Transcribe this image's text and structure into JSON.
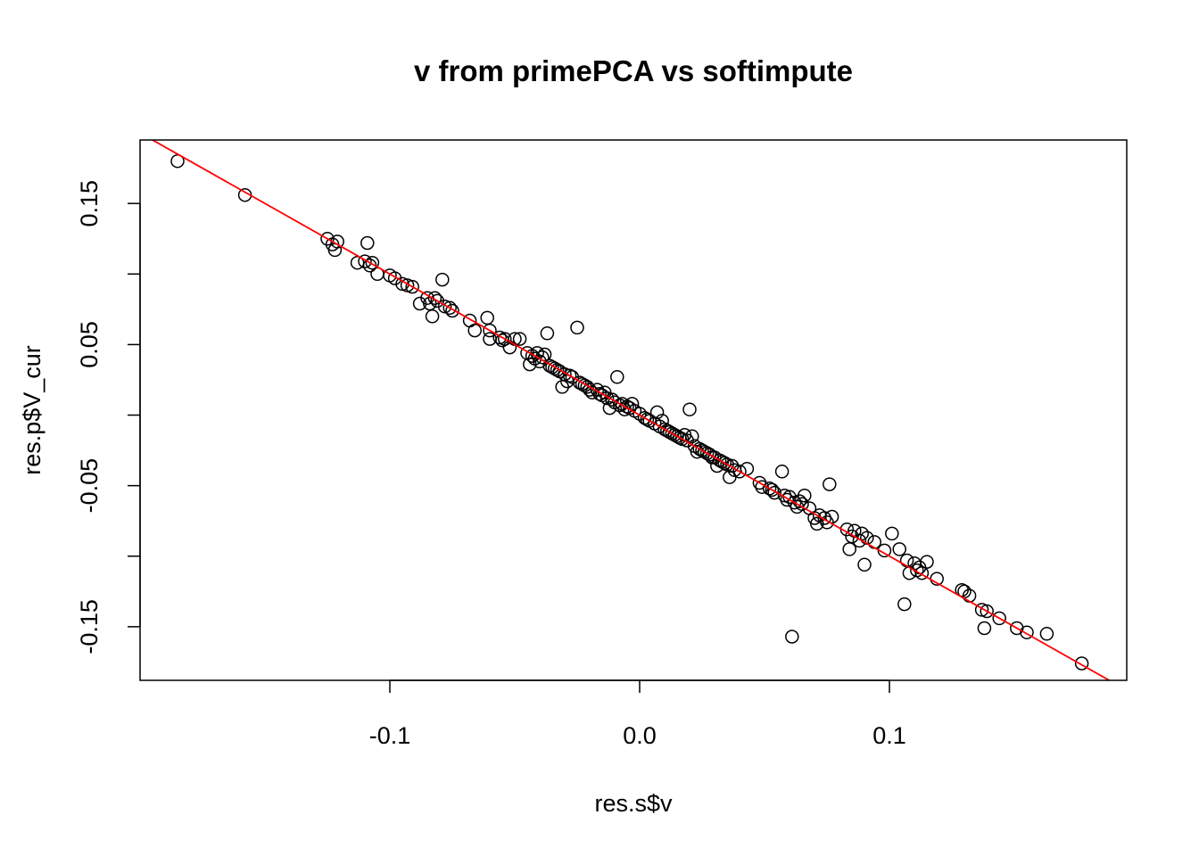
{
  "chart_data": {
    "type": "scatter",
    "title": "v from primePCA vs softimpute",
    "xlabel": "res.s$v",
    "ylabel": "res.p$V_cur",
    "xlim": [
      -0.2,
      0.195
    ],
    "ylim": [
      -0.188,
      0.195
    ],
    "x_ticks": [
      {
        "value": -0.1,
        "label": "-0.1"
      },
      {
        "value": 0.0,
        "label": "0.0"
      },
      {
        "value": 0.1,
        "label": "0.1"
      }
    ],
    "y_ticks": [
      {
        "value": 0.15,
        "label": "0.15"
      },
      {
        "value": 0.1,
        "label": ""
      },
      {
        "value": 0.05,
        "label": "0.05"
      },
      {
        "value": 0.0,
        "label": ""
      },
      {
        "value": -0.05,
        "label": "-0.05"
      },
      {
        "value": -0.1,
        "label": ""
      },
      {
        "value": -0.15,
        "label": "-0.15"
      }
    ],
    "reference_line": {
      "intercept": 0,
      "slope": -1,
      "color": "#ff0000"
    },
    "grid": false,
    "legend": "none",
    "point_style": "open-circle",
    "points": [
      [
        -0.185,
        0.18
      ],
      [
        -0.158,
        0.156
      ],
      [
        -0.125,
        0.125
      ],
      [
        -0.123,
        0.121
      ],
      [
        -0.122,
        0.117
      ],
      [
        -0.121,
        0.123
      ],
      [
        -0.109,
        0.122
      ],
      [
        -0.113,
        0.108
      ],
      [
        -0.11,
        0.109
      ],
      [
        -0.108,
        0.106
      ],
      [
        -0.107,
        0.108
      ],
      [
        -0.105,
        0.1
      ],
      [
        -0.1,
        0.099
      ],
      [
        -0.098,
        0.097
      ],
      [
        -0.095,
        0.093
      ],
      [
        -0.093,
        0.092
      ],
      [
        -0.091,
        0.091
      ],
      [
        -0.088,
        0.079
      ],
      [
        -0.085,
        0.083
      ],
      [
        -0.084,
        0.079
      ],
      [
        -0.083,
        0.07
      ],
      [
        -0.082,
        0.083
      ],
      [
        -0.081,
        0.081
      ],
      [
        -0.079,
        0.096
      ],
      [
        -0.078,
        0.077
      ],
      [
        -0.076,
        0.076
      ],
      [
        -0.075,
        0.074
      ],
      [
        -0.068,
        0.067
      ],
      [
        -0.066,
        0.06
      ],
      [
        -0.061,
        0.069
      ],
      [
        -0.06,
        0.06
      ],
      [
        -0.06,
        0.054
      ],
      [
        -0.056,
        0.055
      ],
      [
        -0.055,
        0.053
      ],
      [
        -0.054,
        0.054
      ],
      [
        -0.052,
        0.048
      ],
      [
        -0.05,
        0.054
      ],
      [
        -0.048,
        0.054
      ],
      [
        -0.045,
        0.044
      ],
      [
        -0.044,
        0.036
      ],
      [
        -0.043,
        0.042
      ],
      [
        -0.042,
        0.04
      ],
      [
        -0.041,
        0.044
      ],
      [
        -0.04,
        0.038
      ],
      [
        -0.039,
        0.041
      ],
      [
        -0.038,
        0.043
      ],
      [
        -0.037,
        0.058
      ],
      [
        -0.036,
        0.035
      ],
      [
        -0.035,
        0.034
      ],
      [
        -0.034,
        0.033
      ],
      [
        -0.033,
        0.032
      ],
      [
        -0.032,
        0.031
      ],
      [
        -0.031,
        0.02
      ],
      [
        -0.03,
        0.029
      ],
      [
        -0.029,
        0.024
      ],
      [
        -0.028,
        0.028
      ],
      [
        -0.027,
        0.027
      ],
      [
        -0.025,
        0.062
      ],
      [
        -0.024,
        0.023
      ],
      [
        -0.023,
        0.022
      ],
      [
        -0.022,
        0.021
      ],
      [
        -0.021,
        0.02
      ],
      [
        -0.02,
        0.018
      ],
      [
        -0.019,
        0.016
      ],
      [
        -0.017,
        0.018
      ],
      [
        -0.016,
        0.015
      ],
      [
        -0.015,
        0.014
      ],
      [
        -0.014,
        0.016
      ],
      [
        -0.013,
        0.012
      ],
      [
        -0.012,
        0.005
      ],
      [
        -0.011,
        0.011
      ],
      [
        -0.01,
        0.009
      ],
      [
        -0.009,
        0.027
      ],
      [
        -0.008,
        0.007
      ],
      [
        -0.007,
        0.008
      ],
      [
        -0.006,
        0.004
      ],
      [
        -0.005,
        0.006
      ],
      [
        -0.004,
        0.005
      ],
      [
        -0.003,
        0.008
      ],
      [
        -0.002,
        0.003
      ],
      [
        0.0,
        0.001
      ],
      [
        0.002,
        -0.002
      ],
      [
        0.003,
        -0.003
      ],
      [
        0.004,
        -0.004
      ],
      [
        0.006,
        -0.006
      ],
      [
        0.007,
        0.002
      ],
      [
        0.008,
        -0.008
      ],
      [
        0.009,
        -0.004
      ],
      [
        0.01,
        -0.01
      ],
      [
        0.011,
        -0.011
      ],
      [
        0.012,
        -0.012
      ],
      [
        0.013,
        -0.013
      ],
      [
        0.014,
        -0.014
      ],
      [
        0.015,
        -0.015
      ],
      [
        0.016,
        -0.016
      ],
      [
        0.017,
        -0.017
      ],
      [
        0.018,
        -0.014
      ],
      [
        0.019,
        -0.018
      ],
      [
        0.02,
        0.004
      ],
      [
        0.021,
        -0.015
      ],
      [
        0.022,
        -0.022
      ],
      [
        0.023,
        -0.026
      ],
      [
        0.024,
        -0.024
      ],
      [
        0.025,
        -0.025
      ],
      [
        0.026,
        -0.026
      ],
      [
        0.027,
        -0.027
      ],
      [
        0.028,
        -0.028
      ],
      [
        0.029,
        -0.03
      ],
      [
        0.03,
        -0.03
      ],
      [
        0.031,
        -0.036
      ],
      [
        0.032,
        -0.032
      ],
      [
        0.033,
        -0.033
      ],
      [
        0.034,
        -0.034
      ],
      [
        0.035,
        -0.035
      ],
      [
        0.036,
        -0.044
      ],
      [
        0.037,
        -0.036
      ],
      [
        0.038,
        -0.039
      ],
      [
        0.04,
        -0.04
      ],
      [
        0.043,
        -0.038
      ],
      [
        0.048,
        -0.048
      ],
      [
        0.049,
        -0.051
      ],
      [
        0.052,
        -0.052
      ],
      [
        0.053,
        -0.053
      ],
      [
        0.054,
        -0.055
      ],
      [
        0.057,
        -0.04
      ],
      [
        0.058,
        -0.057
      ],
      [
        0.059,
        -0.06
      ],
      [
        0.06,
        -0.058
      ],
      [
        0.061,
        -0.157
      ],
      [
        0.062,
        -0.062
      ],
      [
        0.063,
        -0.065
      ],
      [
        0.064,
        -0.061
      ],
      [
        0.065,
        -0.063
      ],
      [
        0.066,
        -0.057
      ],
      [
        0.068,
        -0.066
      ],
      [
        0.07,
        -0.073
      ],
      [
        0.071,
        -0.077
      ],
      [
        0.072,
        -0.071
      ],
      [
        0.074,
        -0.073
      ],
      [
        0.075,
        -0.076
      ],
      [
        0.076,
        -0.049
      ],
      [
        0.077,
        -0.072
      ],
      [
        0.083,
        -0.081
      ],
      [
        0.084,
        -0.095
      ],
      [
        0.085,
        -0.086
      ],
      [
        0.086,
        -0.082
      ],
      [
        0.088,
        -0.089
      ],
      [
        0.089,
        -0.084
      ],
      [
        0.09,
        -0.106
      ],
      [
        0.091,
        -0.087
      ],
      [
        0.094,
        -0.09
      ],
      [
        0.098,
        -0.096
      ],
      [
        0.101,
        -0.084
      ],
      [
        0.104,
        -0.095
      ],
      [
        0.106,
        -0.134
      ],
      [
        0.107,
        -0.103
      ],
      [
        0.108,
        -0.112
      ],
      [
        0.11,
        -0.105
      ],
      [
        0.111,
        -0.11
      ],
      [
        0.112,
        -0.108
      ],
      [
        0.113,
        -0.112
      ],
      [
        0.115,
        -0.104
      ],
      [
        0.119,
        -0.116
      ],
      [
        0.129,
        -0.124
      ],
      [
        0.13,
        -0.125
      ],
      [
        0.132,
        -0.128
      ],
      [
        0.137,
        -0.138
      ],
      [
        0.138,
        -0.151
      ],
      [
        0.139,
        -0.139
      ],
      [
        0.144,
        -0.144
      ],
      [
        0.151,
        -0.151
      ],
      [
        0.155,
        -0.154
      ],
      [
        0.163,
        -0.155
      ],
      [
        0.177,
        -0.176
      ]
    ]
  }
}
